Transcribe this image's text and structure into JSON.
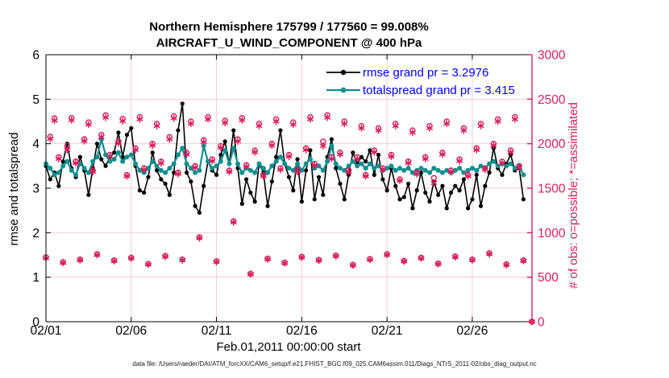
{
  "figure": {
    "title_line1": "Northern Hemisphere 175799 / 177560 = 99.008%",
    "title_line2": "AIRCRAFT_U_WIND_COMPONENT @ 400 hPa",
    "footer": "data file: /Users/raeder/DAI/ATM_forcXX/CAM6_setup/f.e21.FHIST_BGC.f09_025.CAM6assim.011/Diags_NTrS_2011-02/obs_diag_output.nc"
  },
  "chart_data": {
    "type": "line",
    "title": "Northern Hemisphere 175799 / 177560 = 99.008% — AIRCRAFT_U_WIND_COMPONENT @ 400 hPa",
    "xlabel": "Feb.01,2011 00:00:00 start",
    "ylabel_left": "rmse and totalspread",
    "ylabel_right": "# of obs: o=possible; *=assimilated",
    "grid": true,
    "legend_position": "top-right",
    "xlim_days": [
      0,
      28.5
    ],
    "ylim_left": [
      0,
      6
    ],
    "ylim_right": [
      0,
      3000
    ],
    "x_ticks": [
      {
        "day": 0,
        "label": "02/01"
      },
      {
        "day": 5,
        "label": "02/06"
      },
      {
        "day": 10,
        "label": "02/11"
      },
      {
        "day": 15,
        "label": "02/16"
      },
      {
        "day": 20,
        "label": "02/21"
      },
      {
        "day": 25,
        "label": "02/26"
      }
    ],
    "y_ticks_left": [
      0,
      1,
      2,
      3,
      4,
      5,
      6
    ],
    "y_ticks_right": [
      0,
      500,
      1000,
      1500,
      2000,
      2500,
      3000
    ],
    "x_start_day": 0,
    "x_step_days": 0.25,
    "rmse_grand_pr": 3.2976,
    "totalspread_grand_pr": 3.415,
    "series": [
      {
        "name": "rmse",
        "legend": "rmse grand pr = 3.2976",
        "color": "#000000",
        "values": [
          3.5,
          3.2,
          3.35,
          3.05,
          3.6,
          4.0,
          3.45,
          3.25,
          3.7,
          3.4,
          2.85,
          3.45,
          4.0,
          3.65,
          3.5,
          3.7,
          3.8,
          4.25,
          3.7,
          4.2,
          4.35,
          3.5,
          2.95,
          2.9,
          3.25,
          3.8,
          3.4,
          3.2,
          3.1,
          2.85,
          3.35,
          4.3,
          4.9,
          3.35,
          3.15,
          2.6,
          2.45,
          3.05,
          3.6,
          3.4,
          3.3,
          3.75,
          4.05,
          3.55,
          4.3,
          3.45,
          2.65,
          3.2,
          2.9,
          2.7,
          3.55,
          3.35,
          2.6,
          3.15,
          3.7,
          4.3,
          3.55,
          3.25,
          2.95,
          3.65,
          2.7,
          3.4,
          3.85,
          2.75,
          3.25,
          2.85,
          3.7,
          4.1,
          3.45,
          3.1,
          2.75,
          3.3,
          3.8,
          3.55,
          3.7,
          3.6,
          3.85,
          3.3,
          3.75,
          3.2,
          2.95,
          3.45,
          3.05,
          2.75,
          2.8,
          3.1,
          2.55,
          2.95,
          3.35,
          2.9,
          2.7,
          3.15,
          2.85,
          3.05,
          2.55,
          2.9,
          3.05,
          2.95,
          3.2,
          2.55,
          2.75,
          3.3,
          2.6,
          3.05,
          3.35,
          3.9,
          3.45,
          3.3,
          3.55,
          3.75,
          3.4,
          3.45,
          2.75
        ]
      },
      {
        "name": "totalspread",
        "legend": "totalspread grand pr = 3.415",
        "color": "#0f8f8f",
        "values": [
          3.55,
          3.45,
          3.3,
          3.35,
          3.5,
          3.6,
          3.4,
          3.3,
          3.55,
          3.45,
          3.35,
          3.6,
          3.7,
          4.1,
          3.75,
          3.6,
          3.65,
          3.8,
          3.6,
          3.7,
          3.75,
          3.55,
          3.4,
          3.35,
          3.45,
          3.6,
          3.5,
          3.4,
          3.35,
          3.45,
          3.55,
          3.75,
          3.9,
          3.55,
          3.45,
          3.35,
          3.4,
          3.95,
          3.6,
          3.45,
          3.5,
          3.6,
          3.85,
          3.55,
          3.9,
          3.55,
          3.35,
          3.45,
          3.4,
          3.35,
          3.55,
          3.45,
          3.35,
          3.5,
          3.6,
          3.7,
          3.55,
          3.45,
          3.4,
          3.55,
          3.4,
          3.55,
          3.65,
          3.45,
          3.5,
          3.4,
          3.6,
          3.95,
          3.55,
          3.45,
          3.4,
          3.5,
          3.6,
          3.5,
          3.55,
          3.45,
          3.55,
          3.45,
          3.5,
          3.4,
          3.45,
          3.5,
          3.4,
          3.45,
          3.4,
          3.45,
          3.35,
          3.4,
          3.45,
          3.4,
          3.35,
          3.45,
          3.4,
          3.35,
          3.4,
          3.35,
          3.4,
          3.45,
          3.35,
          3.4,
          3.45,
          3.4,
          3.5,
          3.45,
          3.55,
          3.6,
          3.5,
          3.55,
          3.5,
          3.55,
          3.45,
          3.5,
          3.3
        ]
      }
    ],
    "obs_series": {
      "color": "#d81e5f",
      "marker_possible": "o",
      "marker_assimilated": "*",
      "possible": [
        725,
        2080,
        2285,
        1850,
        670,
        1975,
        2290,
        1800,
        700,
        2050,
        2240,
        1700,
        760,
        2100,
        2320,
        1875,
        690,
        2025,
        2280,
        1650,
        720,
        1950,
        2300,
        1725,
        650,
        2000,
        2225,
        1800,
        740,
        2075,
        2310,
        1675,
        700,
        1900,
        2250,
        1750,
        950,
        2040,
        2300,
        1825,
        680,
        1975,
        2260,
        1700,
        1130,
        2050,
        2290,
        1760,
        540,
        1925,
        2225,
        1650,
        710,
        2000,
        2275,
        1725,
        665,
        1875,
        2240,
        1700,
        730,
        1950,
        2300,
        1775,
        695,
        2025,
        2320,
        1850,
        745,
        1900,
        2250,
        1700,
        640,
        1850,
        2200,
        1650,
        705,
        1925,
        2175,
        1725,
        760,
        1875,
        2225,
        1600,
        685,
        1800,
        2150,
        1675,
        720,
        1850,
        2200,
        1615,
        655,
        1900,
        2250,
        1700,
        735,
        1825,
        2175,
        1650,
        700,
        1950,
        2225,
        1725,
        770,
        2000,
        2275,
        1800,
        645,
        1925,
        2300,
        1750,
        690,
        null,
        0
      ],
      "assimilated": [
        715,
        2055,
        2260,
        1830,
        662,
        1930,
        2265,
        1782,
        692,
        2030,
        2215,
        1685,
        750,
        2075,
        2295,
        1855,
        682,
        2005,
        2255,
        1635,
        712,
        1930,
        2275,
        1708,
        643,
        1980,
        2200,
        1782,
        732,
        2050,
        2285,
        1660,
        692,
        1880,
        2225,
        1732,
        940,
        2018,
        2275,
        1805,
        672,
        1955,
        2235,
        1685,
        1118,
        2028,
        2265,
        1742,
        534,
        1905,
        2200,
        1635,
        702,
        1980,
        2250,
        1708,
        658,
        1855,
        2215,
        1685,
        722,
        1930,
        2275,
        1758,
        688,
        1975,
        2295,
        1830,
        737,
        1880,
        2225,
        1685,
        633,
        1830,
        2175,
        1635,
        697,
        1905,
        2150,
        1708,
        752,
        1855,
        2200,
        1585,
        678,
        1782,
        2125,
        1658,
        712,
        1830,
        2175,
        1560,
        648,
        1880,
        2225,
        1685,
        727,
        1805,
        2150,
        1635,
        692,
        1930,
        2200,
        1708,
        762,
        1980,
        2250,
        1782,
        638,
        1905,
        2275,
        1732,
        683,
        null,
        0
      ]
    },
    "colors": {
      "grid": "#f2cdd9",
      "axis": "#000000",
      "right_axis": "#d81e5f",
      "legend_text": "#0000ff"
    }
  }
}
